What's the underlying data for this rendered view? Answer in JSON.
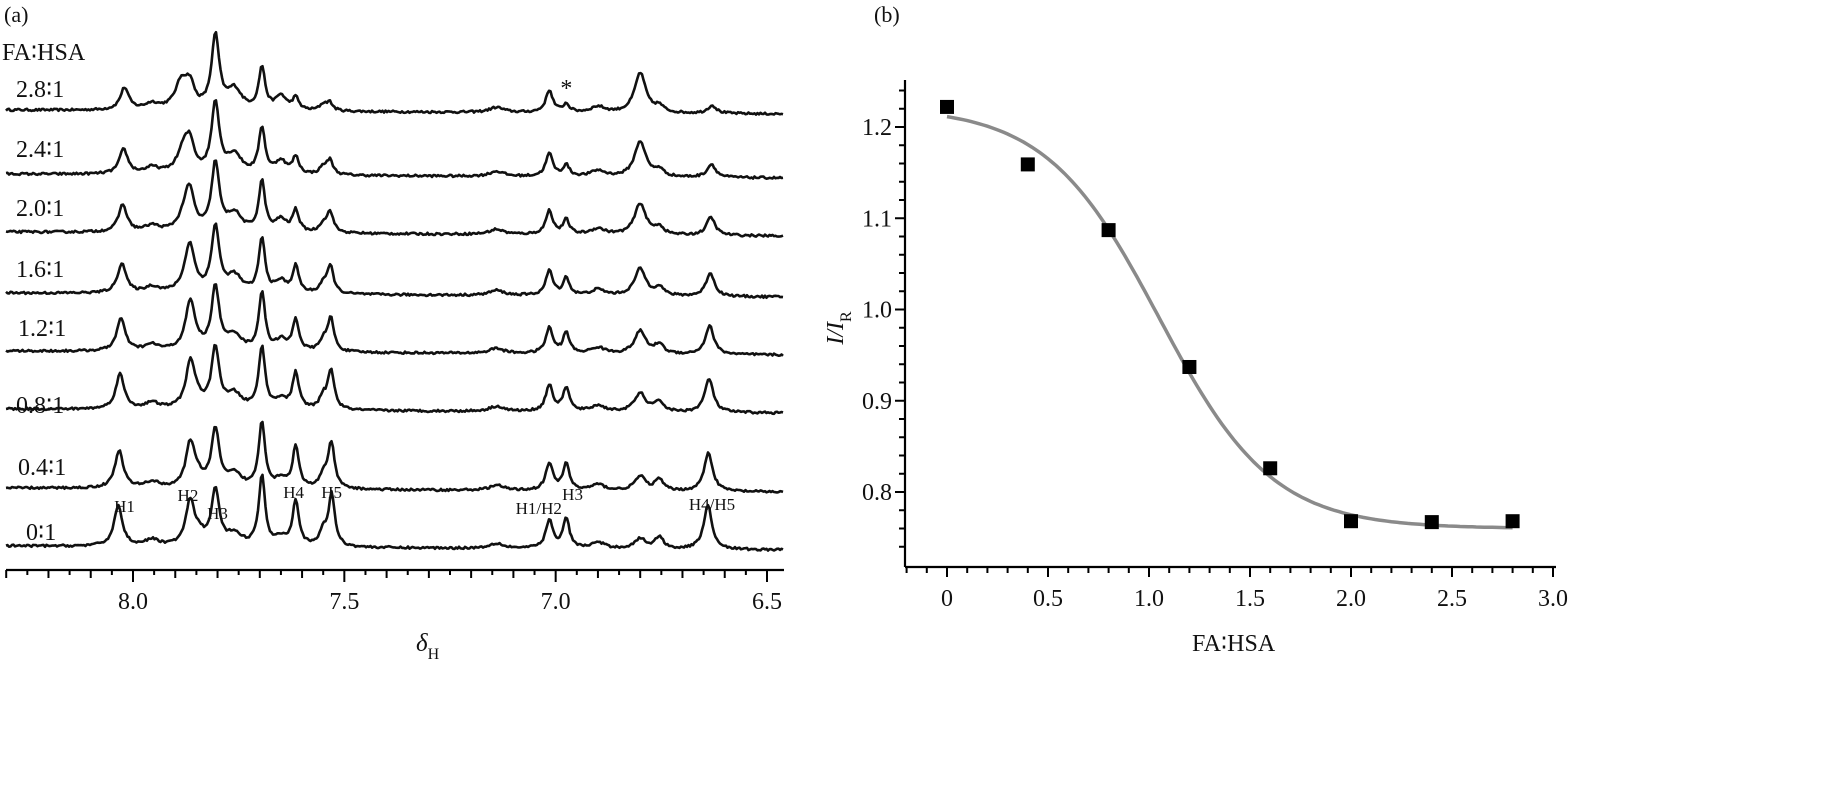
{
  "chart_data": [
    {
      "panel": "(a)",
      "type": "line",
      "title": "",
      "header": "FA∶HSA",
      "xlabel_main": "δ",
      "xlabel_sub": "H",
      "xlim": [
        8.3,
        6.45
      ],
      "x_ticks": [
        "8.0",
        "7.5",
        "7.0",
        "6.5"
      ],
      "x_tick_values": [
        8.0,
        7.5,
        7.0,
        6.5
      ],
      "spectra": [
        {
          "label": "2.8∶1",
          "ratio": 2.8
        },
        {
          "label": "2.4∶1",
          "ratio": 2.4
        },
        {
          "label": "2.0∶1",
          "ratio": 2.0
        },
        {
          "label": "1.6∶1",
          "ratio": 1.6
        },
        {
          "label": "1.2∶1",
          "ratio": 1.2
        },
        {
          "label": "0.8∶1",
          "ratio": 0.8
        },
        {
          "label": "0.4∶1",
          "ratio": 0.4
        },
        {
          "label": "0∶1",
          "ratio": 0.0
        }
      ],
      "peak_labels": [
        {
          "text": "H1",
          "ppm": 8.02
        },
        {
          "text": "H2",
          "ppm": 7.87
        },
        {
          "text": "H3",
          "ppm": 7.8
        },
        {
          "text": "H4",
          "ppm": 7.62
        },
        {
          "text": "H5",
          "ppm": 7.53
        },
        {
          "text": "H1/H2",
          "ppm": 7.04
        },
        {
          "text": "H3",
          "ppm": 6.96
        },
        {
          "text": "H4/H5",
          "ppm": 6.63
        }
      ],
      "annotation": {
        "text": "*",
        "ppm": 6.97
      }
    },
    {
      "panel": "(b)",
      "type": "scatter",
      "xlabel": "FA∶HSA",
      "ylabel_main": "I/I",
      "ylabel_sub": "R",
      "xlim": [
        -0.2,
        3.0
      ],
      "ylim": [
        0.735,
        1.255
      ],
      "x_ticks": [
        "0",
        "0.5",
        "1.0",
        "1.5",
        "2.0",
        "2.5",
        "3.0"
      ],
      "x_tick_values": [
        0,
        0.5,
        1.0,
        1.5,
        2.0,
        2.5,
        3.0
      ],
      "y_ticks": [
        "0.8",
        "0.9",
        "1.0",
        "1.1",
        "1.2"
      ],
      "y_tick_values": [
        0.8,
        0.9,
        1.0,
        1.1,
        1.2
      ],
      "series": [
        {
          "name": "data",
          "x": [
            0,
            0.4,
            0.8,
            1.2,
            1.6,
            2.0,
            2.4,
            2.8
          ],
          "y": [
            1.222,
            1.159,
            1.087,
            0.937,
            0.826,
            0.768,
            0.767,
            0.768
          ]
        },
        {
          "name": "fit",
          "type": "sigmoid",
          "top": 1.222,
          "bottom": 0.76,
          "x50": 1.05,
          "slope": 0.28,
          "x_range": [
            0,
            2.8
          ]
        }
      ]
    }
  ]
}
